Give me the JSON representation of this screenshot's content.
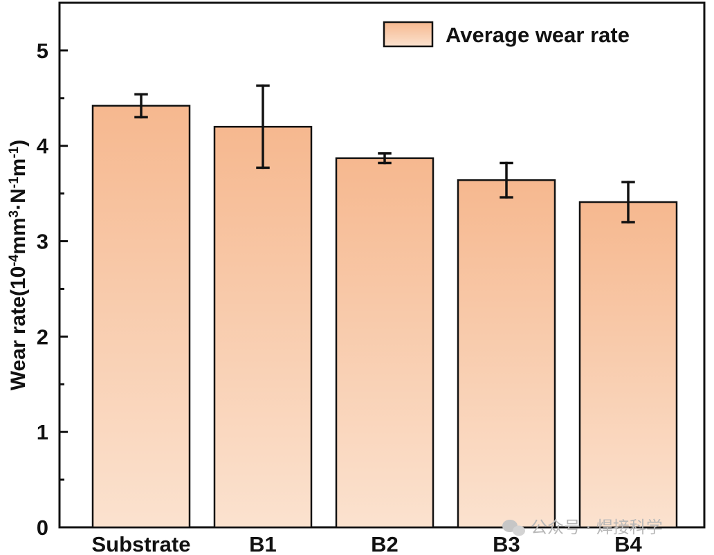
{
  "chart_data": {
    "type": "bar",
    "title": "",
    "xlabel": "",
    "ylabel": "Wear rate(10-4mm3·N-1m-1)",
    "ylabel_parts": [
      {
        "text": "Wear rate(10",
        "super": false
      },
      {
        "text": "-4",
        "super": true
      },
      {
        "text": "mm",
        "super": false
      },
      {
        "text": "3",
        "super": true
      },
      {
        "text": "·N",
        "super": false
      },
      {
        "text": "-1",
        "super": true
      },
      {
        "text": "m",
        "super": false
      },
      {
        "text": "-1",
        "super": true
      },
      {
        "text": ")",
        "super": false
      }
    ],
    "categories": [
      "Substrate",
      "B1",
      "B2",
      "B3",
      "B4"
    ],
    "series": [
      {
        "name": "Average wear rate",
        "values": [
          4.42,
          4.2,
          3.87,
          3.64,
          3.41
        ],
        "errors": [
          0.12,
          0.43,
          0.05,
          0.18,
          0.21
        ],
        "fill_top": "#f6b88f",
        "fill_bottom": "#fbe2cf",
        "stroke": "#111111"
      }
    ],
    "ylim": [
      0,
      5.5
    ],
    "yticks": [
      0,
      1,
      2,
      3,
      4,
      5
    ],
    "grid": false,
    "legend_position": "top-right"
  },
  "watermark": {
    "text": "公众号 · 焊接科学",
    "icon": "wechat-icon"
  }
}
